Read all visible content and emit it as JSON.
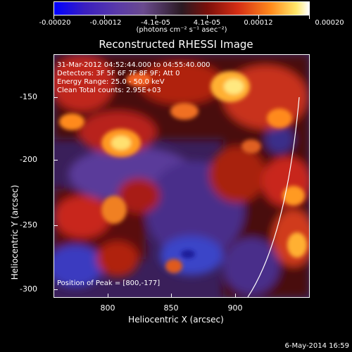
{
  "colorbar": {
    "tick_labels": [
      "-0.00020",
      "-0.00012",
      "-4.1e-05",
      "4.1e-05",
      "0.00012",
      "0.00020"
    ],
    "unit": "(photons cm⁻² s⁻¹ asec⁻²)"
  },
  "title": "Reconstructed RHESSI Image",
  "info": {
    "time": "31-Mar-2012 04:52:44.000 to 04:55:40.000",
    "detectors": "Detectors: 3F 5F 6F 7F 8F 9F; Att 0",
    "energy": "Energy Range: 25.0 - 50.0 keV",
    "clean": "Clean      Total counts: 2.95E+03",
    "peak": "Position of Peak = [800,-177]"
  },
  "axes": {
    "y_label": "Heliocentric Y (arcsec)",
    "x_label": "Heliocentric X (arcsec)",
    "y_ticks": [
      "-150",
      "-200",
      "-250",
      "-300"
    ],
    "x_ticks": [
      "800",
      "850",
      "900"
    ]
  },
  "footer_date": "6-May-2014 16:59"
}
